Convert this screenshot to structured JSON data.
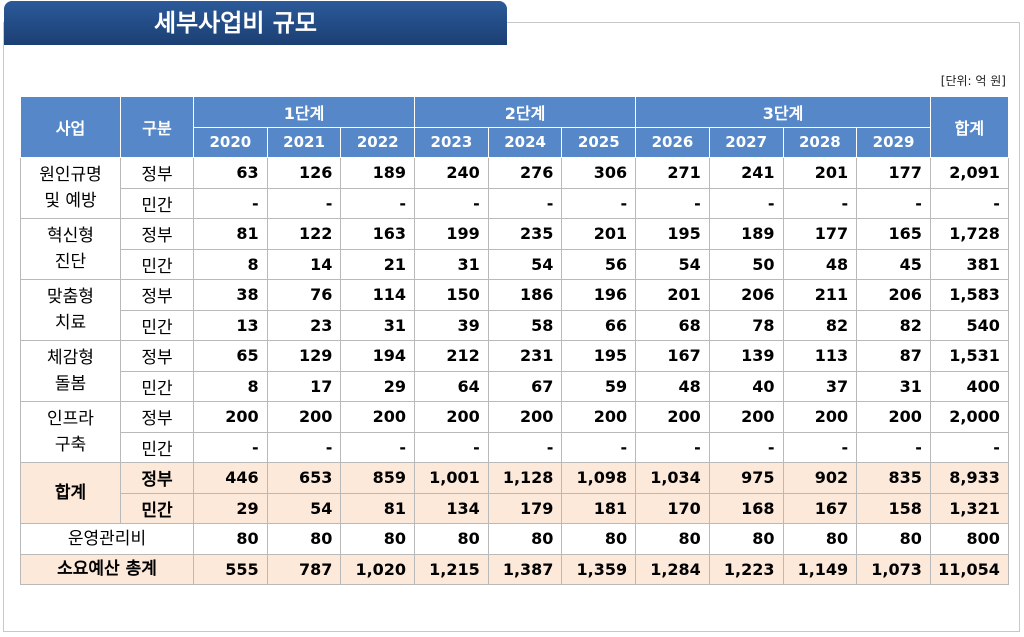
{
  "title": "세부사업비 규모",
  "unit": "[단위: 억 원]",
  "table": {
    "header": {
      "project": "사업",
      "type": "구분",
      "total": "합계",
      "phases": [
        {
          "label": "1단계",
          "years": [
            "2020",
            "2021",
            "2022"
          ]
        },
        {
          "label": "2단계",
          "years": [
            "2023",
            "2024",
            "2025"
          ]
        },
        {
          "label": "3단계",
          "years": [
            "2026",
            "2027",
            "2028",
            "2029"
          ]
        }
      ]
    },
    "groups": [
      {
        "label": [
          "원인규명",
          "및 예방"
        ],
        "rows": [
          {
            "type": "정부",
            "values": [
              "63",
              "126",
              "189",
              "240",
              "276",
              "306",
              "271",
              "241",
              "201",
              "177",
              "2,091"
            ]
          },
          {
            "type": "민간",
            "values": [
              "-",
              "-",
              "-",
              "-",
              "-",
              "-",
              "-",
              "-",
              "-",
              "-",
              "-"
            ]
          }
        ]
      },
      {
        "label": [
          "혁신형",
          "진단"
        ],
        "rows": [
          {
            "type": "정부",
            "values": [
              "81",
              "122",
              "163",
              "199",
              "235",
              "201",
              "195",
              "189",
              "177",
              "165",
              "1,728"
            ]
          },
          {
            "type": "민간",
            "values": [
              "8",
              "14",
              "21",
              "31",
              "54",
              "56",
              "54",
              "50",
              "48",
              "45",
              "381"
            ]
          }
        ]
      },
      {
        "label": [
          "맞춤형",
          "치료"
        ],
        "rows": [
          {
            "type": "정부",
            "values": [
              "38",
              "76",
              "114",
              "150",
              "186",
              "196",
              "201",
              "206",
              "211",
              "206",
              "1,583"
            ]
          },
          {
            "type": "민간",
            "values": [
              "13",
              "23",
              "31",
              "39",
              "58",
              "66",
              "68",
              "78",
              "82",
              "82",
              "540"
            ]
          }
        ]
      },
      {
        "label": [
          "체감형",
          "돌봄"
        ],
        "rows": [
          {
            "type": "정부",
            "values": [
              "65",
              "129",
              "194",
              "212",
              "231",
              "195",
              "167",
              "139",
              "113",
              "87",
              "1,531"
            ]
          },
          {
            "type": "민간",
            "values": [
              "8",
              "17",
              "29",
              "64",
              "67",
              "59",
              "48",
              "40",
              "37",
              "31",
              "400"
            ]
          }
        ]
      },
      {
        "label": [
          "인프라",
          "구축"
        ],
        "rows": [
          {
            "type": "정부",
            "values": [
              "200",
              "200",
              "200",
              "200",
              "200",
              "200",
              "200",
              "200",
              "200",
              "200",
              "2,000"
            ]
          },
          {
            "type": "민간",
            "values": [
              "-",
              "-",
              "-",
              "-",
              "-",
              "-",
              "-",
              "-",
              "-",
              "-",
              "-"
            ]
          }
        ]
      }
    ],
    "totals": {
      "label": "합계",
      "rows": [
        {
          "type": "정부",
          "values": [
            "446",
            "653",
            "859",
            "1,001",
            "1,128",
            "1,098",
            "1,034",
            "975",
            "902",
            "835",
            "8,933"
          ]
        },
        {
          "type": "민간",
          "values": [
            "29",
            "54",
            "81",
            "134",
            "179",
            "181",
            "170",
            "168",
            "167",
            "158",
            "1,321"
          ]
        }
      ]
    },
    "operations": {
      "label": "운영관리비",
      "values": [
        "80",
        "80",
        "80",
        "80",
        "80",
        "80",
        "80",
        "80",
        "80",
        "80",
        "800"
      ]
    },
    "grand_total": {
      "label": "소요예산 총계",
      "values": [
        "555",
        "787",
        "1,020",
        "1,215",
        "1,387",
        "1,359",
        "1,284",
        "1,223",
        "1,149",
        "1,073",
        "11,054"
      ]
    }
  }
}
